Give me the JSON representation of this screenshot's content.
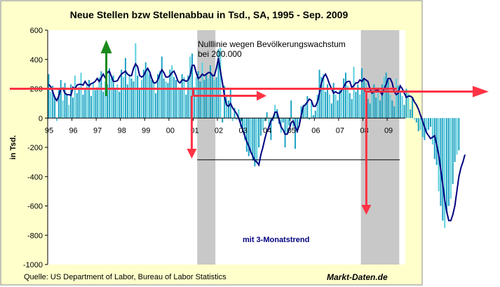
{
  "colors": {
    "page_background": "#ffffff",
    "chart_background": "#ffffcc",
    "plot_background": "#ffffff",
    "bar": "#1fa4c4",
    "bar_light": "#5bd0de",
    "trend_line": "#000080",
    "recession_band": "#c8c8c8",
    "red_arrow": "#ff3344",
    "green_arrow": "#1a8a1a"
  },
  "chart_data": {
    "type": "bar",
    "title": "Neue Stellen bzw Stellenabbau in Tsd., SA, 1995 - Sep. 2009",
    "ylabel": "in Tsd.",
    "xlabel": "",
    "ylim": [
      -1000,
      600
    ],
    "yticks": [
      600,
      400,
      200,
      0,
      -200,
      -400,
      -600,
      -800,
      -1000
    ],
    "year_labels": [
      "95",
      "96",
      "97",
      "98",
      "99",
      "00",
      "01",
      "02",
      "03",
      "04",
      "05",
      "06",
      "07",
      "08",
      "09"
    ],
    "start": "1995-01",
    "end": "2009-09",
    "annotations": {
      "zero_note": "Nulllinie wegen Bevölkerungswachstum\nbei  200.000",
      "trend_label": "mit 3-Monatstrend",
      "reference_line_upper": 200,
      "reference_line_lower": -285
    },
    "recession_bands": [
      {
        "start": "2001-03",
        "end": "2001-11"
      },
      {
        "start": "2007-12",
        "end": "2009-06"
      }
    ],
    "series": [
      {
        "name": "Neue Stellen",
        "kind": "bar",
        "values": [
          300,
          180,
          220,
          150,
          -20,
          200,
          260,
          120,
          240,
          160,
          90,
          230,
          140,
          290,
          170,
          210,
          310,
          160,
          200,
          230,
          260,
          150,
          240,
          190,
          210,
          280,
          320,
          180,
          250,
          230,
          340,
          270,
          290,
          200,
          230,
          180,
          330,
          280,
          410,
          230,
          300,
          270,
          250,
          510,
          290,
          200,
          260,
          330,
          380,
          330,
          300,
          260,
          250,
          170,
          300,
          320,
          420,
          270,
          250,
          240,
          330,
          360,
          280,
          260,
          210,
          200,
          300,
          280,
          160,
          290,
          420,
          440,
          210,
          280,
          320,
          250,
          380,
          260,
          300,
          270,
          360,
          300,
          260,
          280,
          470,
          480,
          -30,
          220,
          150,
          120,
          200,
          -20,
          70,
          -10,
          60,
          -60,
          -80,
          -150,
          -230,
          -260,
          -240,
          -290,
          -330,
          -310,
          -200,
          -120,
          -80,
          -20,
          40,
          -60,
          -150,
          -20,
          90,
          60,
          -40,
          -100,
          -30,
          -200,
          -100,
          -50,
          120,
          -60,
          -210,
          -100,
          -40,
          80,
          90,
          100,
          150,
          -10,
          110,
          20,
          50,
          160,
          330,
          280,
          300,
          180,
          230,
          160,
          100,
          240,
          160,
          120,
          190,
          200,
          270,
          310,
          220,
          170,
          130,
          350,
          180,
          230,
          160,
          340,
          270,
          240,
          130,
          100,
          200,
          230,
          140,
          210,
          120,
          230,
          280,
          310,
          260,
          160,
          120,
          80,
          270,
          220,
          180,
          150,
          90,
          200,
          170,
          60,
          140,
          -10,
          -30,
          -90,
          -80,
          -130,
          -150,
          -100,
          -80,
          -60,
          -180,
          -280,
          -320,
          -500,
          -600,
          -700,
          -750,
          -650,
          -600,
          -550,
          -450,
          -300,
          -250,
          -220
        ]
      },
      {
        "name": "3-Monatstrend",
        "kind": "line",
        "values": [
          230,
          215,
          180,
          140,
          120,
          150,
          200,
          205,
          170,
          160,
          160,
          155,
          210,
          200,
          225,
          230,
          230,
          225,
          250,
          230,
          220,
          235,
          240,
          250,
          270,
          250,
          275,
          300,
          275,
          310,
          320,
          285,
          250,
          250,
          255,
          280,
          300,
          310,
          320,
          300,
          290,
          290,
          340,
          370,
          350,
          290,
          280,
          290,
          320,
          340,
          315,
          270,
          240,
          240,
          260,
          300,
          330,
          310,
          280,
          280,
          290,
          310,
          320,
          290,
          250,
          240,
          260,
          260,
          250,
          260,
          290,
          360,
          360,
          310,
          270,
          280,
          300,
          290,
          300,
          310,
          310,
          290,
          290,
          340,
          410,
          320,
          240,
          150,
          90,
          80,
          100,
          70,
          50,
          30,
          0,
          -40,
          -80,
          -120,
          -160,
          -190,
          -230,
          -260,
          -290,
          -300,
          -320,
          -250,
          -200,
          -140,
          -90,
          -60,
          -20,
          0,
          40,
          40,
          -10,
          -60,
          -80,
          -110,
          -110,
          -80,
          -30,
          -20,
          -60,
          -90,
          -50,
          20,
          80,
          90,
          110,
          130,
          120,
          80,
          80,
          110,
          170,
          240,
          280,
          300,
          270,
          230,
          200,
          170,
          180,
          170,
          170,
          190,
          210,
          240,
          250,
          250,
          210,
          220,
          240,
          240,
          260,
          250,
          270,
          260,
          250,
          200,
          170,
          180,
          190,
          190,
          180,
          160,
          200,
          230,
          270,
          270,
          240,
          180,
          160,
          170,
          220,
          200,
          170,
          140,
          150,
          150,
          140,
          110,
          90,
          60,
          20,
          -20,
          -60,
          -100,
          -120,
          -140,
          -130,
          -120,
          -180,
          -250,
          -350,
          -450,
          -560,
          -640,
          -700,
          -700,
          -660,
          -600,
          -500,
          -400,
          -340,
          -300,
          -250
        ]
      }
    ]
  },
  "footer": {
    "source": "Quelle: US Department of Labor, Bureau of Labor Statistics",
    "brand": "Markt-Daten.de"
  }
}
